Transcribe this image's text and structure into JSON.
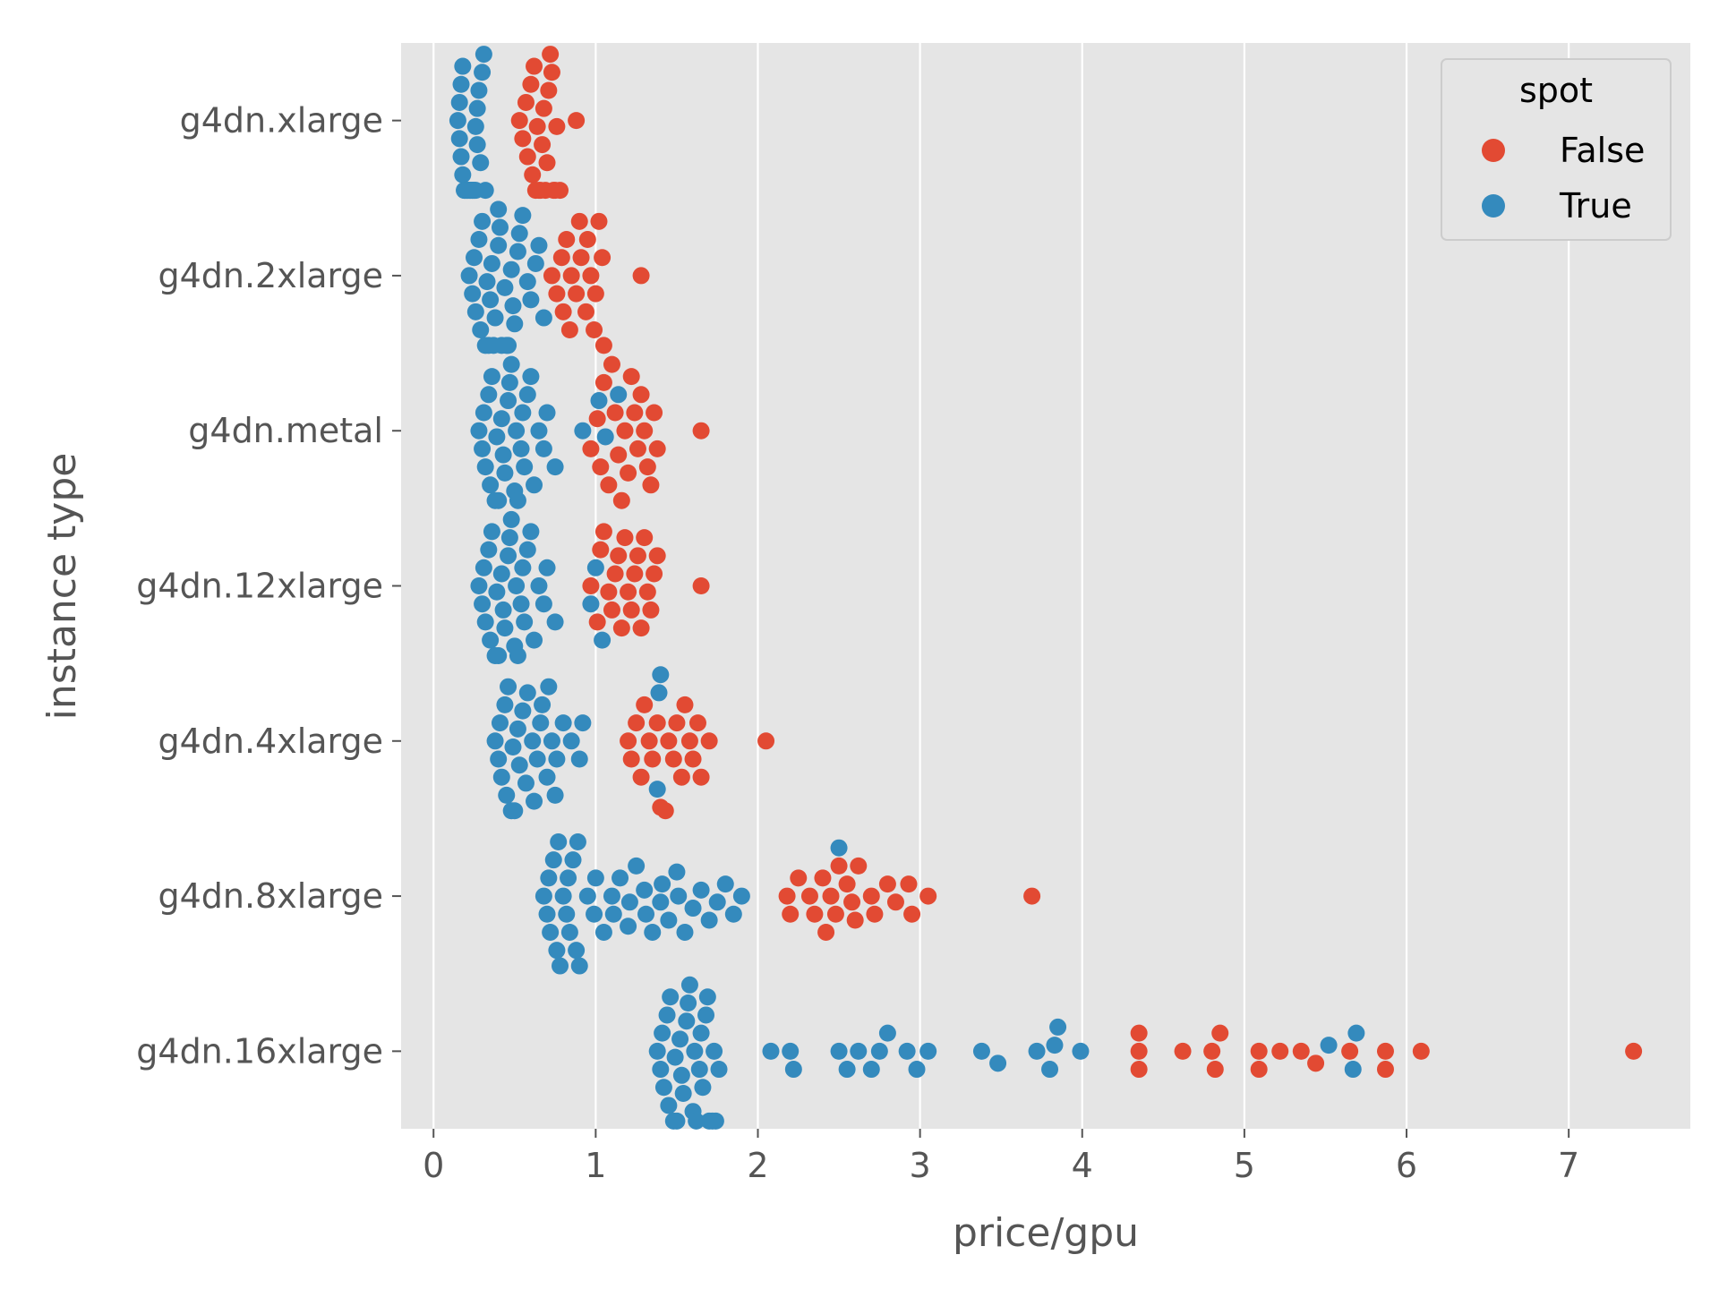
{
  "chart_data": {
    "type": "swarm",
    "title": "",
    "xlabel": "price/gpu",
    "ylabel": "instance type",
    "xlim": [
      -0.2,
      7.75
    ],
    "xticks": [
      0,
      1,
      2,
      3,
      4,
      5,
      6,
      7
    ],
    "categories": [
      "g4dn.xlarge",
      "g4dn.2xlarge",
      "g4dn.metal",
      "g4dn.12xlarge",
      "g4dn.4xlarge",
      "g4dn.8xlarge",
      "g4dn.16xlarge"
    ],
    "grid": true,
    "legend": {
      "title": "spot",
      "position": "top-right"
    },
    "series": [
      {
        "name": "False",
        "color": "#E24A33",
        "values": [
          [
            0.53,
            0.58,
            0.61,
            0.63,
            0.65,
            0.67,
            0.69,
            0.71,
            0.73,
            0.75,
            0.78,
            0.55,
            0.57,
            0.6,
            0.62,
            0.64,
            0.66,
            0.68,
            0.7,
            0.72,
            0.74,
            0.76,
            0.88
          ],
          [
            0.73,
            0.76,
            0.79,
            0.82,
            0.85,
            0.88,
            0.91,
            0.94,
            0.97,
            1.0,
            1.04,
            0.8,
            0.84,
            0.9,
            0.95,
            0.99,
            1.02,
            1.05,
            1.28
          ],
          [
            0.97,
            1.01,
            1.05,
            1.1,
            1.14,
            1.18,
            1.22,
            1.26,
            1.3,
            1.34,
            1.38,
            1.03,
            1.08,
            1.12,
            1.16,
            1.2,
            1.24,
            1.28,
            1.32,
            1.36,
            1.65
          ],
          [
            0.97,
            1.01,
            1.05,
            1.1,
            1.14,
            1.18,
            1.22,
            1.26,
            1.3,
            1.34,
            1.38,
            1.03,
            1.08,
            1.12,
            1.16,
            1.2,
            1.24,
            1.28,
            1.32,
            1.36,
            1.65
          ],
          [
            1.2,
            1.25,
            1.3,
            1.35,
            1.4,
            1.45,
            1.5,
            1.55,
            1.6,
            1.65,
            1.7,
            1.22,
            1.28,
            1.33,
            1.38,
            1.43,
            1.48,
            1.53,
            1.58,
            1.63,
            2.05
          ],
          [
            2.18,
            2.25,
            2.32,
            2.4,
            2.45,
            2.5,
            2.55,
            2.6,
            2.7,
            2.8,
            2.95,
            3.05,
            2.2,
            2.35,
            2.42,
            2.48,
            2.58,
            2.62,
            2.72,
            2.85,
            2.93,
            3.69
          ],
          [
            4.35,
            4.35,
            4.35,
            4.62,
            4.8,
            4.82,
            4.85,
            5.09,
            5.09,
            5.22,
            5.35,
            5.44,
            5.65,
            5.87,
            5.87,
            6.09,
            7.4
          ]
        ]
      },
      {
        "name": "True",
        "color": "#348ABD",
        "values": [
          [
            0.15,
            0.16,
            0.17,
            0.18,
            0.19,
            0.2,
            0.21,
            0.22,
            0.23,
            0.24,
            0.25,
            0.26,
            0.27,
            0.28,
            0.3,
            0.16,
            0.18,
            0.2,
            0.22,
            0.24,
            0.26,
            0.29,
            0.32,
            0.17,
            0.19,
            0.21,
            0.23,
            0.25,
            0.27,
            0.31
          ],
          [
            0.22,
            0.24,
            0.26,
            0.28,
            0.3,
            0.32,
            0.34,
            0.36,
            0.38,
            0.4,
            0.42,
            0.44,
            0.46,
            0.48,
            0.5,
            0.52,
            0.55,
            0.6,
            0.65,
            0.68,
            0.25,
            0.29,
            0.33,
            0.37,
            0.41,
            0.45,
            0.49,
            0.53,
            0.58,
            0.63,
            0.35,
            0.4
          ],
          [
            0.28,
            0.3,
            0.32,
            0.34,
            0.36,
            0.38,
            0.4,
            0.42,
            0.44,
            0.46,
            0.48,
            0.5,
            0.52,
            0.54,
            0.56,
            0.58,
            0.6,
            0.65,
            0.7,
            0.75,
            0.31,
            0.35,
            0.39,
            0.43,
            0.47,
            0.51,
            0.55,
            0.62,
            0.68,
            0.92,
            1.02,
            1.06,
            1.14
          ],
          [
            0.28,
            0.3,
            0.32,
            0.34,
            0.36,
            0.38,
            0.4,
            0.42,
            0.44,
            0.46,
            0.48,
            0.5,
            0.52,
            0.54,
            0.56,
            0.58,
            0.6,
            0.65,
            0.7,
            0.75,
            0.31,
            0.35,
            0.39,
            0.43,
            0.47,
            0.51,
            0.55,
            0.62,
            0.68,
            0.97,
            1.0,
            1.04
          ],
          [
            0.38,
            0.4,
            0.42,
            0.44,
            0.46,
            0.48,
            0.5,
            0.52,
            0.55,
            0.58,
            0.61,
            0.64,
            0.67,
            0.7,
            0.73,
            0.76,
            0.8,
            0.85,
            0.9,
            0.92,
            0.41,
            0.45,
            0.49,
            0.53,
            0.57,
            0.62,
            0.66,
            0.71,
            0.75,
            1.38,
            1.39,
            1.4
          ],
          [
            0.68,
            0.7,
            0.72,
            0.74,
            0.76,
            0.78,
            0.8,
            0.82,
            0.84,
            0.86,
            0.88,
            0.9,
            0.95,
            1.0,
            1.05,
            1.1,
            1.15,
            1.2,
            1.25,
            1.3,
            1.35,
            1.4,
            1.45,
            1.5,
            1.55,
            1.6,
            1.65,
            1.7,
            1.75,
            1.8,
            1.85,
            1.9,
            2.5,
            0.71,
            0.77,
            0.83,
            0.89,
            0.99,
            1.11,
            1.21,
            1.31,
            1.41,
            1.51
          ],
          [
            1.38,
            1.4,
            1.42,
            1.44,
            1.46,
            1.48,
            1.5,
            1.52,
            1.54,
            1.56,
            1.58,
            1.6,
            1.62,
            1.64,
            1.66,
            1.68,
            1.7,
            1.72,
            1.74,
            1.76,
            2.08,
            2.2,
            2.22,
            2.5,
            2.55,
            2.62,
            2.7,
            2.75,
            2.8,
            2.92,
            2.98,
            3.05,
            3.38,
            3.48,
            3.72,
            3.8,
            3.83,
            3.85,
            3.99,
            5.52,
            5.67,
            5.69,
            1.41,
            1.45,
            1.49,
            1.53,
            1.57,
            1.61,
            1.65,
            1.69,
            1.73
          ]
        ]
      }
    ]
  }
}
